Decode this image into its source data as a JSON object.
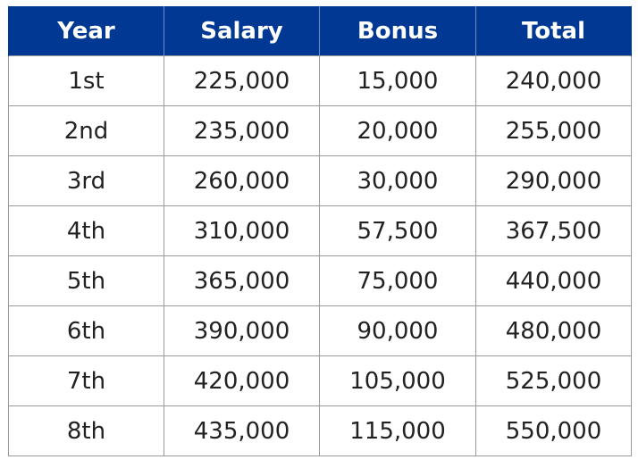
{
  "table": {
    "headers": [
      "Year",
      "Salary",
      "Bonus",
      "Total"
    ],
    "rows": [
      [
        "1st",
        "225,000",
        "15,000",
        "240,000"
      ],
      [
        "2nd",
        "235,000",
        "20,000",
        "255,000"
      ],
      [
        "3rd",
        "260,000",
        "30,000",
        "290,000"
      ],
      [
        "4th",
        "310,000",
        "57,500",
        "367,500"
      ],
      [
        "5th",
        "365,000",
        "75,000",
        "440,000"
      ],
      [
        "6th",
        "390,000",
        "90,000",
        "480,000"
      ],
      [
        "7th",
        "420,000",
        "105,000",
        "525,000"
      ],
      [
        "8th",
        "435,000",
        "115,000",
        "550,000"
      ]
    ],
    "colors": {
      "header_bg": "#003893",
      "header_text": "#ffffff",
      "border": "#9a9a9a"
    }
  }
}
